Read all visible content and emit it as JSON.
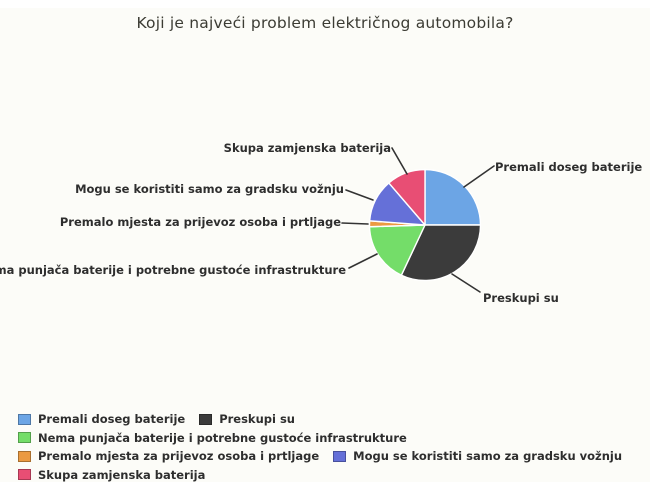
{
  "title": "Koji je najveći problem električnog automobila?",
  "chart_data": {
    "type": "pie",
    "title": "Koji je najveći problem električnog automobila?",
    "start_angle_deg": 0,
    "direction": "clockwise-from-12-oclock",
    "legend_position": "bottom-left",
    "callout_labels": true,
    "slices": [
      {
        "label": "Premali doseg baterije",
        "value_pct": 25,
        "color": "#6CA5E5"
      },
      {
        "label": "Preskupi su",
        "value_pct": 32,
        "color": "#3B3B3B"
      },
      {
        "label": "Nema punjača baterije i potrebne gustoće infrastrukture",
        "value_pct": 17.5,
        "color": "#74DD69"
      },
      {
        "label": "Premalo mjesta za prijevoz osoba i prtljage",
        "value_pct": 1.7,
        "color": "#EB9A42"
      },
      {
        "label": "Mogu se koristiti samo za gradsku vožnju",
        "value_pct": 12.5,
        "color": "#6570D8"
      },
      {
        "label": "Skupa zamjenska baterija",
        "value_pct": 11.3,
        "color": "#E84E74"
      }
    ]
  }
}
